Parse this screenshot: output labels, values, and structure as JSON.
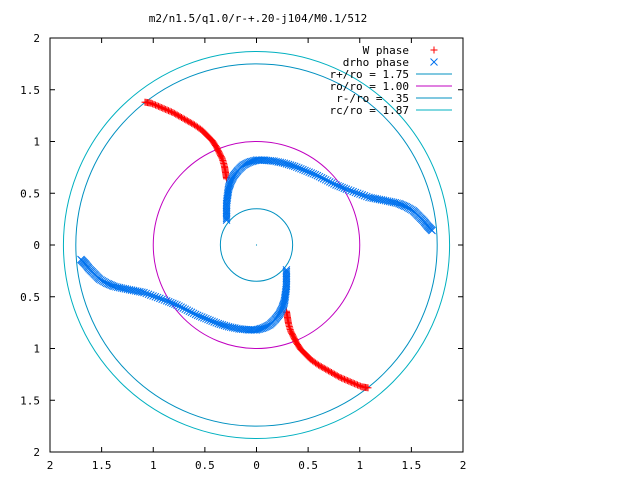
{
  "chart_data": {
    "type": "scatter",
    "title": "m2/n1.5/q1.0/r-+.20-j104/M0.1/512",
    "xlabel": "",
    "ylabel": "",
    "xlim": [
      -2,
      2
    ],
    "ylim": [
      -2,
      2
    ],
    "x_tick_labels": [
      "2",
      "1.5",
      "1",
      "0.5",
      "0",
      "0.5",
      "1",
      "1.5",
      "2"
    ],
    "y_tick_labels": [
      "2",
      "1.5",
      "1",
      "0.5",
      "0",
      "0.5",
      "1",
      "1.5",
      "2"
    ],
    "grid": false,
    "legend_position": "top-right",
    "series": [
      {
        "name": "W phase",
        "marker": "plus",
        "color": "#ff0000",
        "points": [
          [
            -1.08,
            1.38
          ],
          [
            -1.02,
            1.37
          ],
          [
            -0.95,
            1.34
          ],
          [
            -0.88,
            1.31
          ],
          [
            -0.81,
            1.28
          ],
          [
            -0.74,
            1.24
          ],
          [
            -0.67,
            1.2
          ],
          [
            -0.6,
            1.16
          ],
          [
            -0.53,
            1.11
          ],
          [
            -0.48,
            1.06
          ],
          [
            -0.43,
            1.01
          ],
          [
            -0.39,
            0.95
          ],
          [
            -0.36,
            0.89
          ],
          [
            -0.33,
            0.83
          ],
          [
            -0.31,
            0.76
          ],
          [
            -0.3,
            0.7
          ],
          [
            -0.29,
            0.64
          ],
          [
            1.08,
            -1.38
          ],
          [
            1.02,
            -1.37
          ],
          [
            0.95,
            -1.34
          ],
          [
            0.88,
            -1.31
          ],
          [
            0.81,
            -1.28
          ],
          [
            0.74,
            -1.24
          ],
          [
            0.67,
            -1.2
          ],
          [
            0.6,
            -1.16
          ],
          [
            0.53,
            -1.11
          ],
          [
            0.48,
            -1.06
          ],
          [
            0.43,
            -1.01
          ],
          [
            0.39,
            -0.95
          ],
          [
            0.36,
            -0.89
          ],
          [
            0.33,
            -0.83
          ],
          [
            0.31,
            -0.76
          ],
          [
            0.3,
            -0.7
          ],
          [
            0.29,
            -0.64
          ]
        ]
      },
      {
        "name": "drho phase",
        "marker": "cross",
        "color": "#0072ee",
        "points": [
          [
            -0.29,
            0.24
          ],
          [
            -0.29,
            0.32
          ],
          [
            -0.29,
            0.4
          ],
          [
            -0.28,
            0.48
          ],
          [
            -0.27,
            0.55
          ],
          [
            -0.25,
            0.61
          ],
          [
            -0.22,
            0.67
          ],
          [
            -0.18,
            0.72
          ],
          [
            -0.13,
            0.77
          ],
          [
            -0.07,
            0.8
          ],
          [
            0.0,
            0.82
          ],
          [
            0.08,
            0.82
          ],
          [
            0.17,
            0.81
          ],
          [
            0.27,
            0.79
          ],
          [
            0.37,
            0.76
          ],
          [
            0.47,
            0.72
          ],
          [
            0.57,
            0.68
          ],
          [
            0.67,
            0.63
          ],
          [
            0.77,
            0.58
          ],
          [
            0.87,
            0.54
          ],
          [
            0.98,
            0.5
          ],
          [
            1.09,
            0.46
          ],
          [
            1.19,
            0.44
          ],
          [
            1.29,
            0.42
          ],
          [
            1.38,
            0.4
          ],
          [
            1.45,
            0.37
          ],
          [
            1.52,
            0.33
          ],
          [
            1.57,
            0.28
          ],
          [
            1.62,
            0.23
          ],
          [
            1.66,
            0.18
          ],
          [
            1.7,
            0.14
          ],
          [
            0.29,
            -0.24
          ],
          [
            0.29,
            -0.32
          ],
          [
            0.29,
            -0.4
          ],
          [
            0.28,
            -0.48
          ],
          [
            0.27,
            -0.55
          ],
          [
            0.25,
            -0.61
          ],
          [
            0.22,
            -0.67
          ],
          [
            0.18,
            -0.72
          ],
          [
            0.13,
            -0.77
          ],
          [
            0.07,
            -0.8
          ],
          [
            0.0,
            -0.82
          ],
          [
            -0.08,
            -0.82
          ],
          [
            -0.17,
            -0.81
          ],
          [
            -0.27,
            -0.79
          ],
          [
            -0.37,
            -0.76
          ],
          [
            -0.47,
            -0.72
          ],
          [
            -0.57,
            -0.68
          ],
          [
            -0.67,
            -0.63
          ],
          [
            -0.77,
            -0.58
          ],
          [
            -0.87,
            -0.54
          ],
          [
            -0.98,
            -0.5
          ],
          [
            -1.09,
            -0.46
          ],
          [
            -1.19,
            -0.44
          ],
          [
            -1.29,
            -0.42
          ],
          [
            -1.38,
            -0.4
          ],
          [
            -1.45,
            -0.37
          ],
          [
            -1.52,
            -0.33
          ],
          [
            -1.57,
            -0.28
          ],
          [
            -1.62,
            -0.23
          ],
          [
            -1.66,
            -0.18
          ],
          [
            -1.7,
            -0.14
          ]
        ]
      },
      {
        "name": "r+/ro = 1.75",
        "type": "circle",
        "radius": 1.75,
        "color": "#0090c0"
      },
      {
        "name": "ro/ro = 1.00",
        "type": "circle",
        "radius": 1.0,
        "color": "#c000c0"
      },
      {
        "name": "r-/ro = .35",
        "type": "circle",
        "radius": 0.35,
        "color": "#0090c0"
      },
      {
        "name": "rc/ro = 1.87",
        "type": "circle",
        "radius": 1.87,
        "color": "#00b0c0"
      }
    ]
  }
}
